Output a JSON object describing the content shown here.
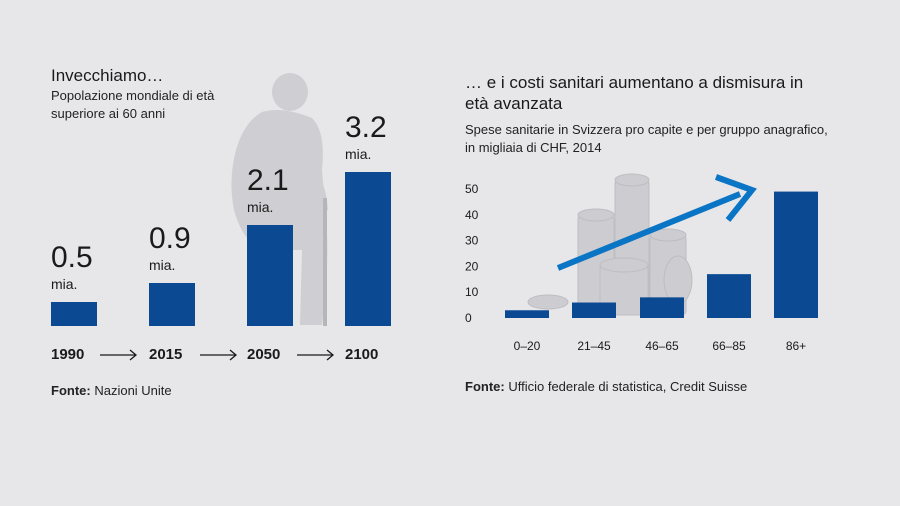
{
  "left": {
    "title": "Invecchiamo…",
    "subtitle_line1": "Popolazione mondiale di età",
    "subtitle_line2": "superiore ai 60 anni",
    "source_label": "Fonte:",
    "source_text": " Nazioni Unite"
  },
  "right": {
    "title_line1": "… e i costi sanitari aumentano a dismisura in",
    "title_line2": "età avanzata",
    "subtitle_line1": "Spese sanitarie in Svizzera pro capite e per gruppo anagrafico,",
    "subtitle_line2": "in migliaia di CHF, 2014",
    "source_label": "Fonte:",
    "source_text": " Ufficio federale di statistica, Credit Suisse"
  },
  "colors": {
    "bar": "#0b4a93",
    "trend_arrow": "#0a74c5",
    "background": "#e7e7e9",
    "silhouette": "#cfcfd3"
  },
  "chart_data": [
    {
      "type": "bar",
      "categories": [
        "1990",
        "2015",
        "2050",
        "2100"
      ],
      "values": [
        0.5,
        0.9,
        2.1,
        3.2
      ],
      "value_labels": [
        "0.5",
        "0.9",
        "2.1",
        "3.2"
      ],
      "unit_label": "mia.",
      "title": "Invecchiamo…",
      "grid": false
    },
    {
      "type": "bar",
      "categories": [
        "0–20",
        "21–45",
        "46–65",
        "66–85",
        "86+"
      ],
      "values": [
        3,
        6,
        8,
        17,
        49
      ],
      "yticks": [
        "0",
        "10",
        "20",
        "30",
        "40",
        "50"
      ],
      "ylim": [
        0,
        50
      ],
      "title": "… e i costi sanitari aumentano a dismisura in età avanzata",
      "grid": false
    }
  ]
}
